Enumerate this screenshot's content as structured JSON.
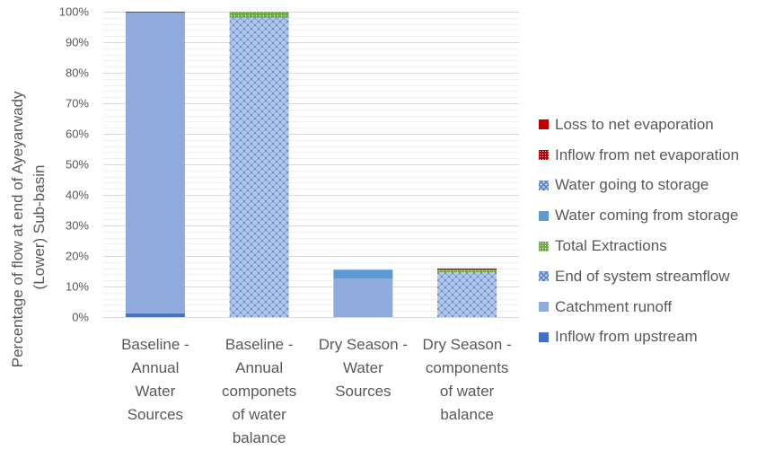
{
  "chart_data": {
    "type": "bar",
    "stacked": true,
    "title": "",
    "ylabel": "Percentage of flow at end of Ayeyarwady (Lower) Sub-basin",
    "ylabel_lines": [
      "Percentage of flow at end of Ayeyarwady",
      "(Lower) Sub-basin"
    ],
    "xlabel": "",
    "ylim": [
      0,
      100
    ],
    "yticks": [
      "0%",
      "10%",
      "20%",
      "30%",
      "40%",
      "50%",
      "60%",
      "70%",
      "80%",
      "90%",
      "100%"
    ],
    "grid": true,
    "legend_position": "right",
    "categories": [
      "Baseline - Annual Water Sources",
      "Baseline  - Annual componets of water balance",
      "Dry Season - Water Sources",
      "Dry Season - components of water balance"
    ],
    "category_lines": [
      [
        "Baseline -",
        "Annual",
        "Water",
        "Sources"
      ],
      [
        "Baseline  -",
        "Annual",
        "componets",
        "of water",
        "balance"
      ],
      [
        "Dry Season -",
        "Water",
        "Sources"
      ],
      [
        "Dry Season -",
        "components",
        "of water",
        "balance"
      ]
    ],
    "series": [
      {
        "name": "Inflow from upstream",
        "color": "#4472c4",
        "pattern": "solid",
        "values": [
          1.2,
          0,
          0,
          0
        ]
      },
      {
        "name": "Catchment runoff",
        "color": "#8faadc",
        "pattern": "solid",
        "values": [
          98.6,
          0,
          12.6,
          0
        ]
      },
      {
        "name": "End of system streamflow",
        "color": "#4472c4",
        "pattern": "crosshatch",
        "values": [
          0,
          98.0,
          0,
          14.7
        ]
      },
      {
        "name": "Total Extractions",
        "color": "#70ad47",
        "pattern": "dots",
        "values": [
          0,
          2.0,
          0,
          0.8
        ]
      },
      {
        "name": "Water coming from storage",
        "color": "#5b9bd5",
        "pattern": "solid",
        "values": [
          0,
          0,
          2.9,
          0
        ]
      },
      {
        "name": "Water going to storage",
        "color": "#4472c4",
        "pattern": "crosshatch",
        "values": [
          0,
          0,
          0,
          0
        ]
      },
      {
        "name": "Inflow from net evaporation",
        "color": "#c00000",
        "pattern": "dots",
        "values": [
          0,
          0,
          0,
          0
        ]
      },
      {
        "name": "Loss to net evaporation",
        "color": "#c00000",
        "pattern": "solid",
        "values": [
          0.2,
          0,
          0,
          0.4
        ]
      }
    ],
    "legend_order": [
      "Loss to net evaporation",
      "Inflow from net evaporation",
      "Water going to storage",
      "Water coming from storage",
      "Total Extractions",
      "End of system streamflow",
      "Catchment runoff",
      "Inflow from upstream"
    ]
  }
}
